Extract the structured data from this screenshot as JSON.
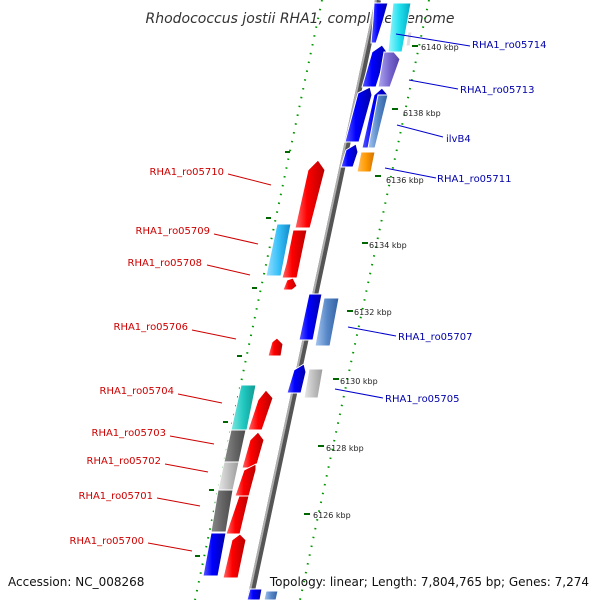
{
  "title": "Rhodococcus jostii RHA1, complete genome",
  "footer": {
    "accession": "Accession: NC_008268",
    "summary": "Topology: linear; Length: 7,804,765 bp; Genes: 7,274"
  },
  "colors": {
    "reverse_label": "#cc0000",
    "forward_label": "#0000aa",
    "axis": "#808080",
    "tick": "#008000"
  },
  "ticks": [
    {
      "label": "6126 kbp"
    },
    {
      "label": "6128 kbp"
    },
    {
      "label": "6130 kbp"
    },
    {
      "label": "6132 kbp"
    },
    {
      "label": "6134 kbp"
    },
    {
      "label": "6136 kbp"
    },
    {
      "label": "6138 kbp"
    },
    {
      "label": "6140 kbp"
    }
  ],
  "reverse_genes": [
    {
      "label": "RHA1_ro05710"
    },
    {
      "label": "RHA1_ro05709"
    },
    {
      "label": "RHA1_ro05708"
    },
    {
      "label": "RHA1_ro05706"
    },
    {
      "label": "RHA1_ro05704"
    },
    {
      "label": "RHA1_ro05703"
    },
    {
      "label": "RHA1_ro05702"
    },
    {
      "label": "RHA1_ro05701"
    },
    {
      "label": "RHA1_ro05700"
    }
  ],
  "forward_genes": [
    {
      "label": "RHA1_ro05714"
    },
    {
      "label": "RHA1_ro05713"
    },
    {
      "label": "ilvB4"
    },
    {
      "label": "RHA1_ro05711"
    },
    {
      "label": "RHA1_ro05707"
    },
    {
      "label": "RHA1_ro05705"
    }
  ]
}
